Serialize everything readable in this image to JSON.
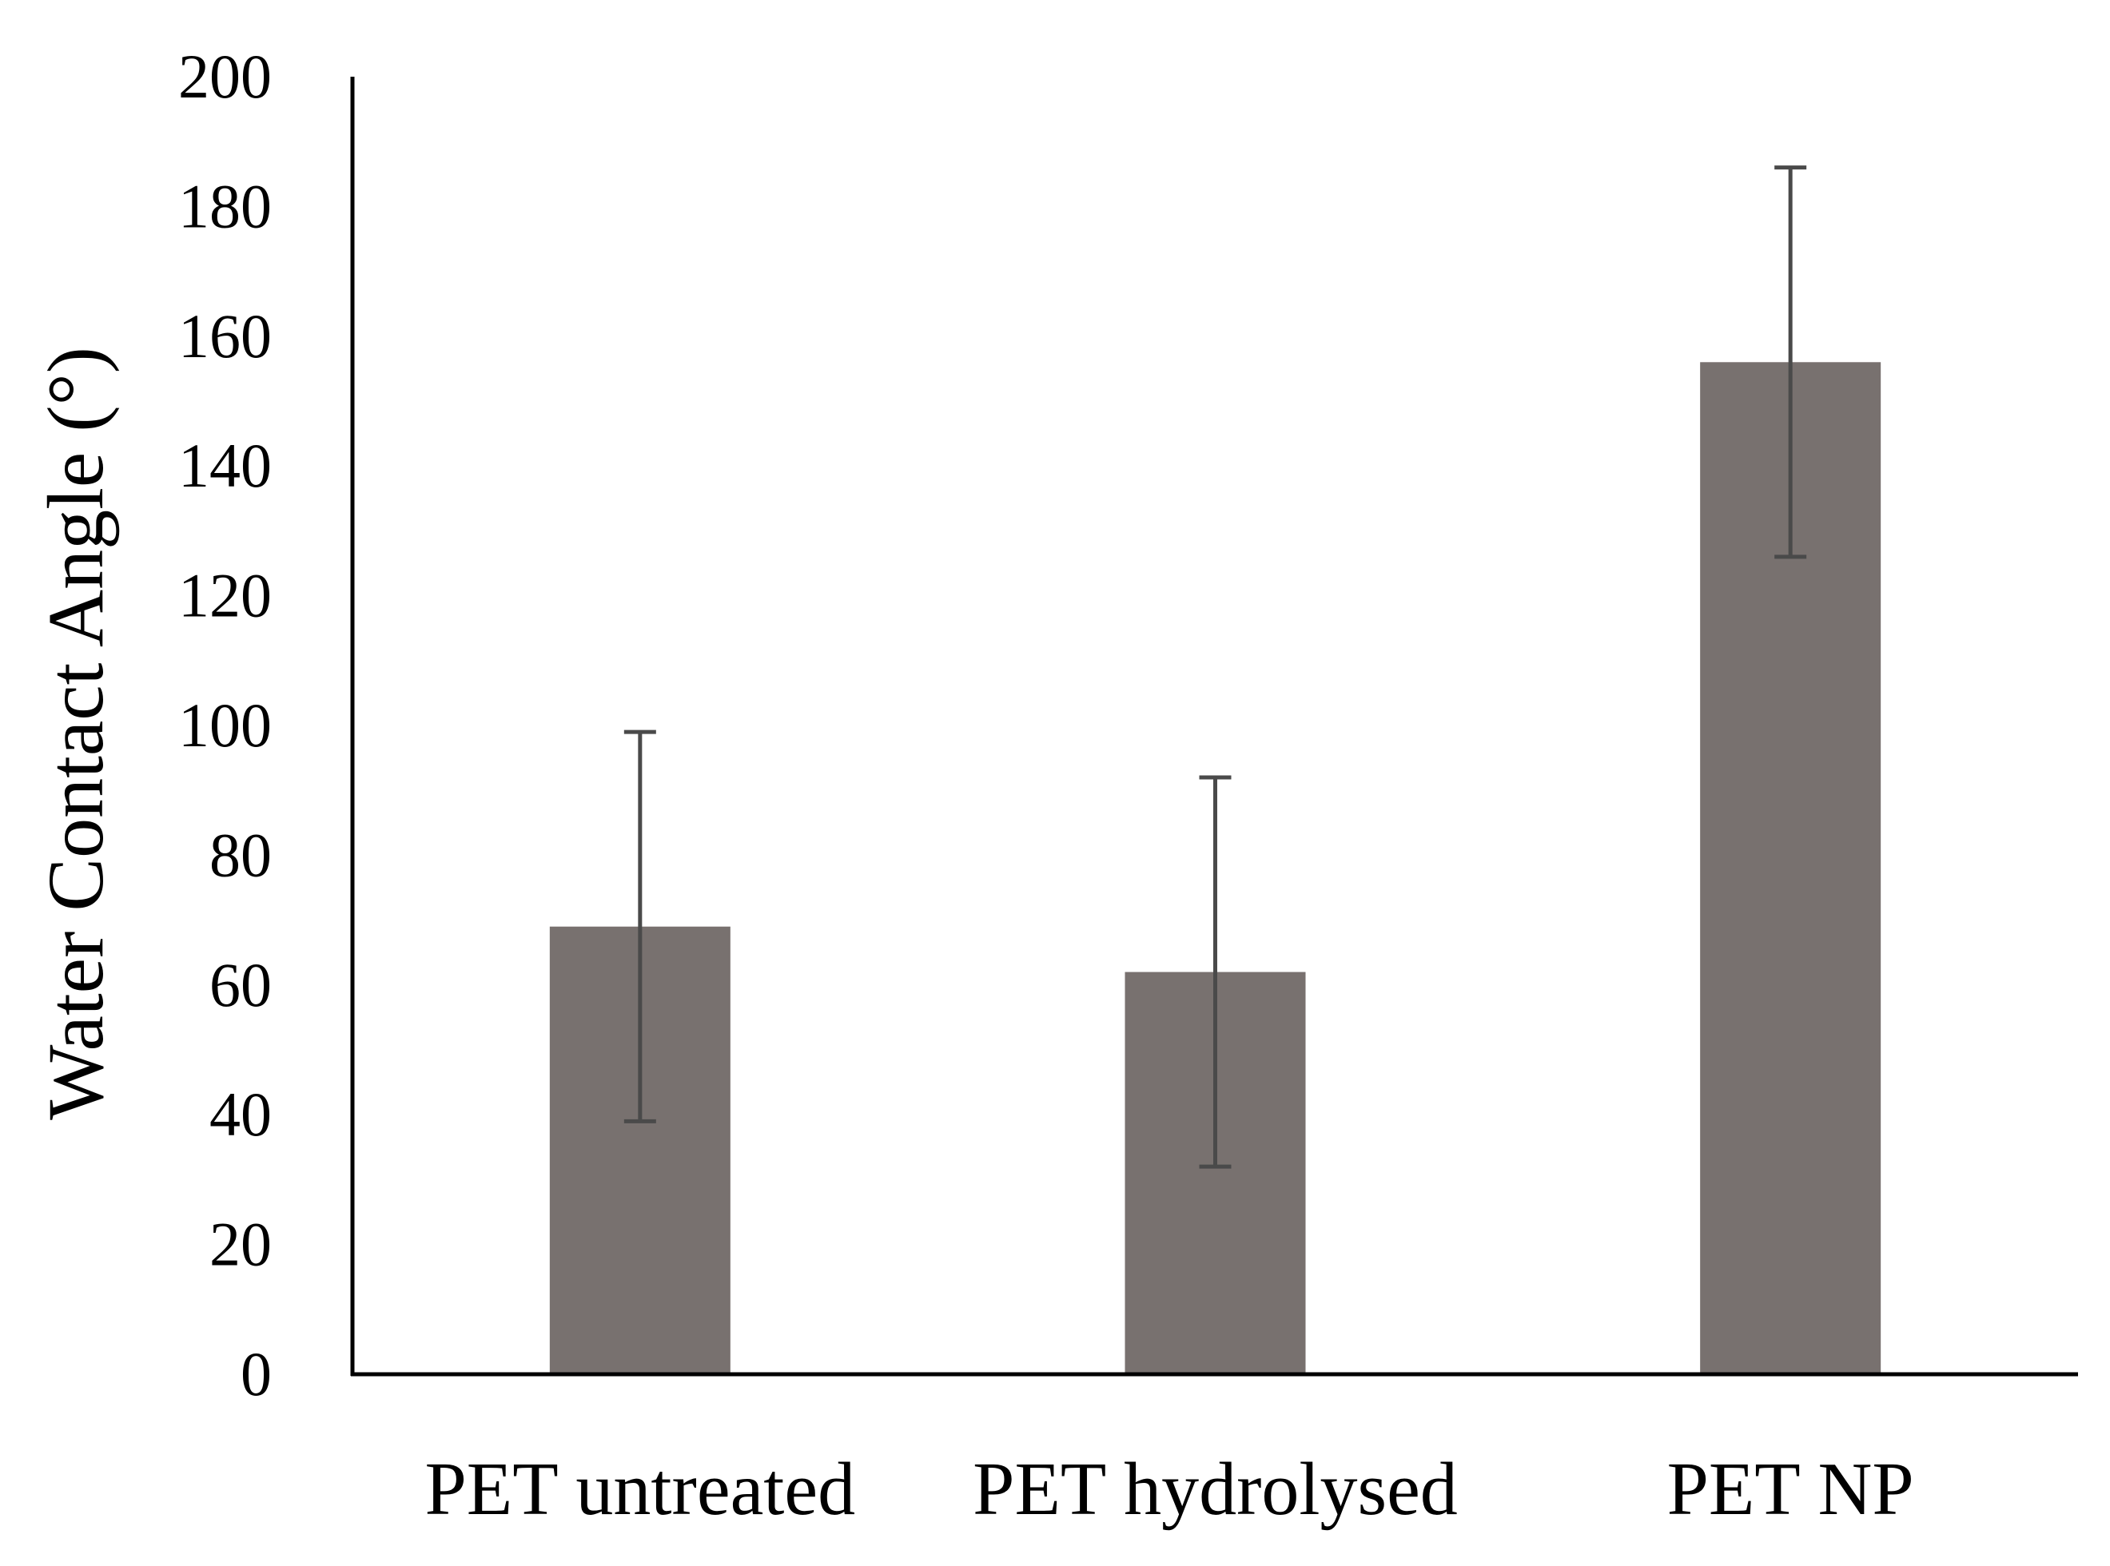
{
  "chart_data": {
    "type": "bar",
    "title": "",
    "xlabel": "",
    "ylabel": "Water Contact Angle (°)",
    "categories": [
      "PET untreated",
      "PET hydrolysed",
      "PET NP"
    ],
    "series": [
      {
        "name": "Water Contact Angle",
        "values": [
          69,
          62,
          156
        ],
        "error": [
          30,
          30,
          30
        ]
      }
    ],
    "ylim": [
      0,
      200
    ],
    "yticks": [
      0,
      20,
      40,
      60,
      80,
      100,
      120,
      140,
      160,
      180,
      200
    ],
    "grid": false,
    "legend": "none"
  },
  "colors": {
    "bar": "#78716f",
    "error_bar": "#4a4a4a",
    "axis": "#000000"
  }
}
